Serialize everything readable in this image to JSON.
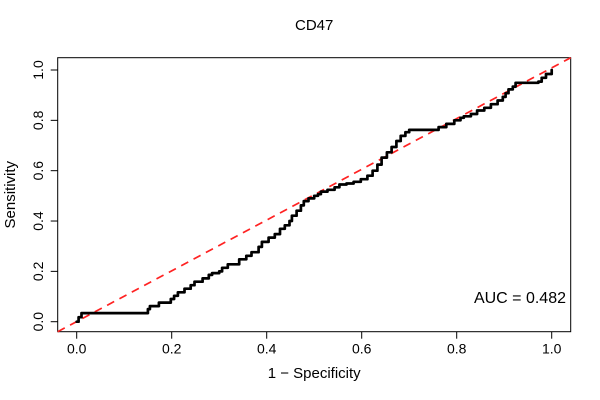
{
  "title": "CD47",
  "axes": {
    "xlabel": "1 − Specificity",
    "ylabel": "Sensitivity",
    "x_tick_labels": [
      "0.0",
      "0.2",
      "0.4",
      "0.6",
      "0.8",
      "1.0"
    ],
    "x_tick_values": [
      0,
      0.2,
      0.4,
      0.6,
      0.8,
      1.0
    ],
    "y_tick_labels": [
      "0.0",
      "0.2",
      "0.4",
      "0.6",
      "0.8",
      "1.0"
    ],
    "y_tick_values": [
      0,
      0.2,
      0.4,
      0.6,
      0.8,
      1.0
    ]
  },
  "annotation": {
    "auc_label": "AUC = 0.482"
  },
  "colors": {
    "curve": "#000000",
    "diagonal": "#FF2222",
    "box": "#000000",
    "background": "#ffffff"
  },
  "chart_data": {
    "type": "line",
    "title": "CD47",
    "xlabel": "1 − Specificity",
    "ylabel": "Sensitivity",
    "xlim": [
      0,
      1
    ],
    "ylim": [
      0,
      1
    ],
    "grid": false,
    "legend_position": "none",
    "auc": 0.482,
    "annotations": [
      {
        "text": "AUC = 0.482",
        "x": 0.97,
        "y": 0.07,
        "anchor": "end"
      }
    ],
    "series": [
      {
        "name": "ROC curve CD47",
        "style": "step",
        "color": "#000000",
        "points": [
          [
            0,
            0
          ],
          [
            0.004,
            0.018
          ],
          [
            0.01,
            0.034
          ],
          [
            0.145,
            0.034
          ],
          [
            0.15,
            0.05
          ],
          [
            0.154,
            0.062
          ],
          [
            0.168,
            0.062
          ],
          [
            0.173,
            0.076
          ],
          [
            0.19,
            0.076
          ],
          [
            0.198,
            0.09
          ],
          [
            0.205,
            0.103
          ],
          [
            0.213,
            0.117
          ],
          [
            0.227,
            0.131
          ],
          [
            0.24,
            0.145
          ],
          [
            0.248,
            0.159
          ],
          [
            0.26,
            0.159
          ],
          [
            0.265,
            0.172
          ],
          [
            0.278,
            0.186
          ],
          [
            0.285,
            0.193
          ],
          [
            0.3,
            0.2
          ],
          [
            0.306,
            0.214
          ],
          [
            0.318,
            0.228
          ],
          [
            0.33,
            0.228
          ],
          [
            0.342,
            0.248
          ],
          [
            0.357,
            0.262
          ],
          [
            0.368,
            0.276
          ],
          [
            0.383,
            0.297
          ],
          [
            0.39,
            0.317
          ],
          [
            0.404,
            0.334
          ],
          [
            0.417,
            0.348
          ],
          [
            0.428,
            0.369
          ],
          [
            0.438,
            0.383
          ],
          [
            0.448,
            0.4
          ],
          [
            0.453,
            0.421
          ],
          [
            0.463,
            0.441
          ],
          [
            0.472,
            0.462
          ],
          [
            0.478,
            0.479
          ],
          [
            0.488,
            0.49
          ],
          [
            0.5,
            0.5
          ],
          [
            0.508,
            0.507
          ],
          [
            0.514,
            0.517
          ],
          [
            0.528,
            0.524
          ],
          [
            0.543,
            0.534
          ],
          [
            0.553,
            0.545
          ],
          [
            0.568,
            0.549
          ],
          [
            0.583,
            0.556
          ],
          [
            0.598,
            0.566
          ],
          [
            0.612,
            0.58
          ],
          [
            0.623,
            0.6
          ],
          [
            0.633,
            0.624
          ],
          [
            0.642,
            0.652
          ],
          [
            0.653,
            0.673
          ],
          [
            0.663,
            0.694
          ],
          [
            0.673,
            0.718
          ],
          [
            0.682,
            0.738
          ],
          [
            0.692,
            0.753
          ],
          [
            0.7,
            0.762
          ],
          [
            0.748,
            0.762
          ],
          [
            0.762,
            0.773
          ],
          [
            0.778,
            0.786
          ],
          [
            0.795,
            0.8
          ],
          [
            0.808,
            0.81
          ],
          [
            0.815,
            0.816
          ],
          [
            0.83,
            0.825
          ],
          [
            0.843,
            0.839
          ],
          [
            0.858,
            0.85
          ],
          [
            0.872,
            0.864
          ],
          [
            0.886,
            0.879
          ],
          [
            0.897,
            0.893
          ],
          [
            0.903,
            0.908
          ],
          [
            0.909,
            0.923
          ],
          [
            0.918,
            0.934
          ],
          [
            0.924,
            0.949
          ],
          [
            0.972,
            0.954
          ],
          [
            0.979,
            0.969
          ],
          [
            0.988,
            0.984
          ],
          [
            1,
            1
          ]
        ]
      },
      {
        "name": "chance diagonal",
        "style": "dashed",
        "color": "#FF2222",
        "points": [
          [
            0,
            0
          ],
          [
            1,
            1
          ]
        ]
      }
    ]
  }
}
